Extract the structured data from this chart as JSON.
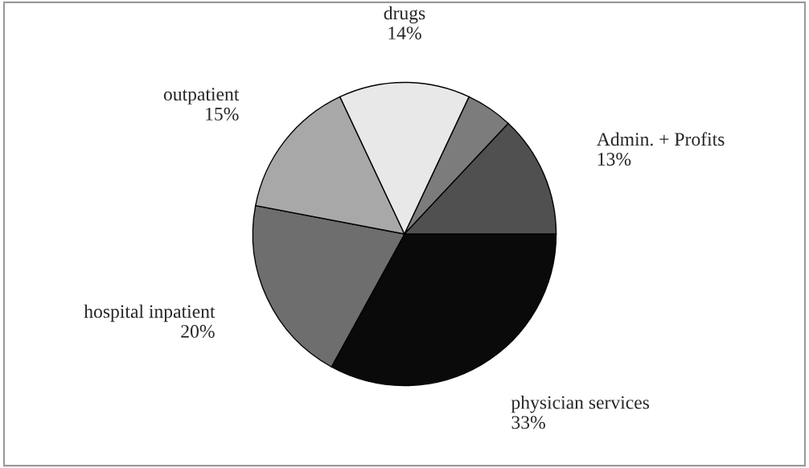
{
  "chart_data": {
    "type": "pie",
    "categories": [
      "physician services",
      "hospital inpatient",
      "outpatient",
      "drugs",
      null,
      "Admin. + Profits"
    ],
    "values": [
      33,
      20,
      15,
      14,
      5,
      13
    ],
    "value_labels": [
      "33%",
      "20%",
      "15%",
      "14%",
      null,
      "13%"
    ],
    "colors": [
      "#0a0a0a",
      "#6e6e6e",
      "#a8a8a8",
      "#e8e8e8",
      "#7c7c7c",
      "#505050"
    ],
    "legend": false
  }
}
